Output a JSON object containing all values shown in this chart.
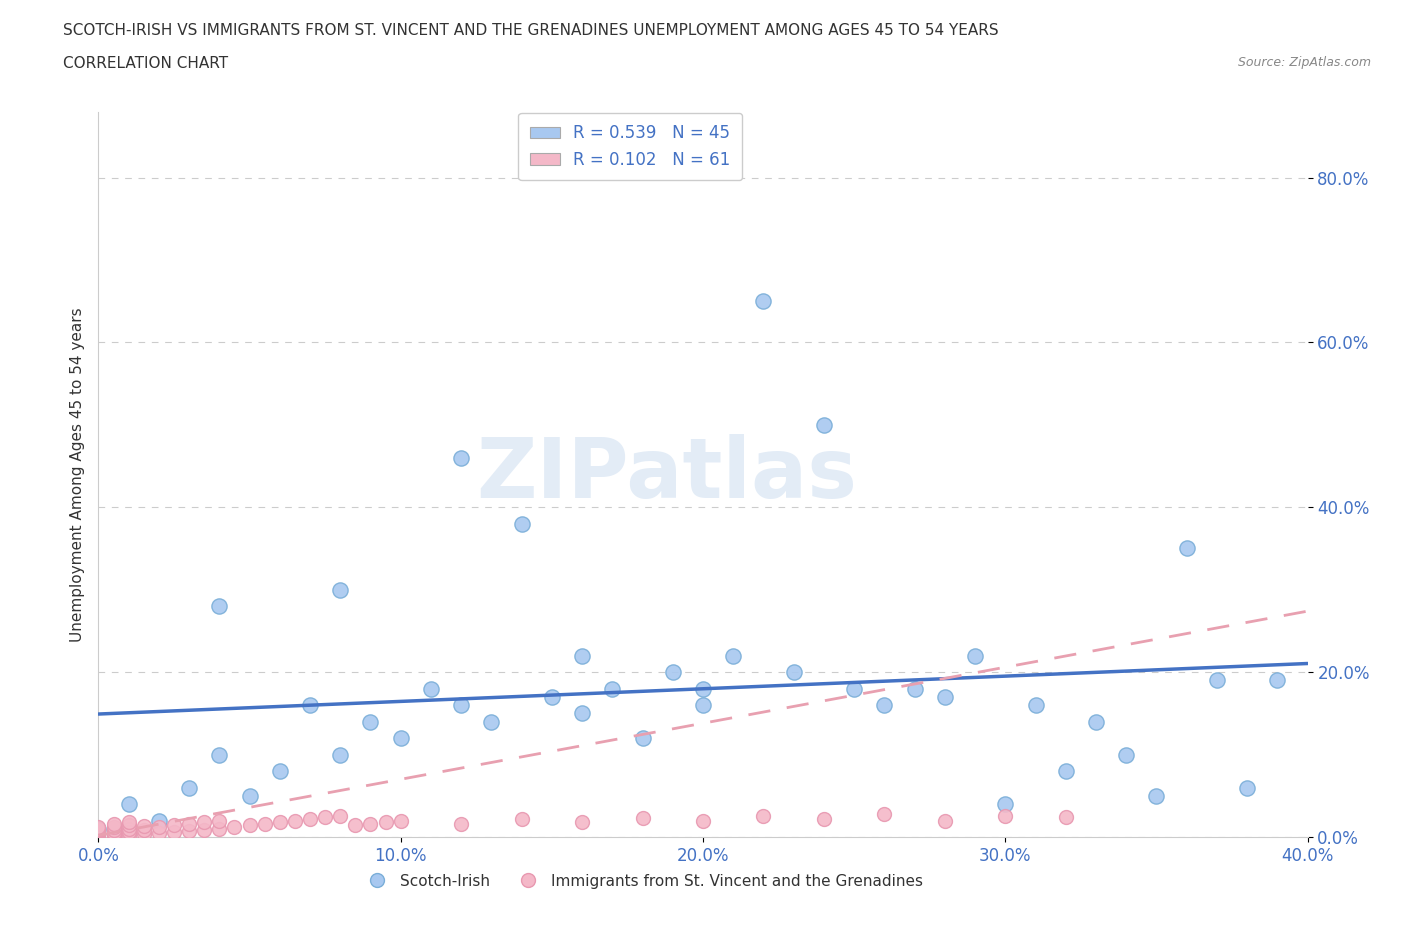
{
  "title_line1": "SCOTCH-IRISH VS IMMIGRANTS FROM ST. VINCENT AND THE GRENADINES UNEMPLOYMENT AMONG AGES 45 TO 54 YEARS",
  "title_line2": "CORRELATION CHART",
  "source_text": "Source: ZipAtlas.com",
  "ylabel": "Unemployment Among Ages 45 to 54 years",
  "legend_r1": "R = 0.539",
  "legend_n1": "N = 45",
  "legend_r2": "R = 0.102",
  "legend_n2": "N = 61",
  "color_blue": "#a8c8f0",
  "color_blue_edge": "#7aaed8",
  "color_pink": "#f4b8c8",
  "color_pink_edge": "#e898b0",
  "line_blue": "#4472c4",
  "line_pink": "#e8a0b0",
  "watermark": "ZIPatlas",
  "xlim": [
    0.0,
    0.4
  ],
  "ylim": [
    0.0,
    0.88
  ],
  "xticks": [
    0.0,
    0.1,
    0.2,
    0.3,
    0.4
  ],
  "yticks": [
    0.0,
    0.2,
    0.4,
    0.6,
    0.8
  ],
  "xticklabels": [
    "0.0%",
    "10.0%",
    "20.0%",
    "30.0%",
    "40.0%"
  ],
  "yticklabels": [
    "0.0%",
    "20.0%",
    "40.0%",
    "60.0%",
    "80.0%"
  ],
  "scotch_irish_x": [
    0.0,
    0.01,
    0.02,
    0.03,
    0.04,
    0.05,
    0.06,
    0.07,
    0.08,
    0.09,
    0.1,
    0.11,
    0.12,
    0.13,
    0.14,
    0.15,
    0.16,
    0.17,
    0.18,
    0.19,
    0.2,
    0.21,
    0.22,
    0.23,
    0.24,
    0.25,
    0.26,
    0.27,
    0.28,
    0.29,
    0.3,
    0.31,
    0.32,
    0.33,
    0.34,
    0.35,
    0.36,
    0.37,
    0.38,
    0.39,
    0.04,
    0.08,
    0.12,
    0.16,
    0.2
  ],
  "scotch_irish_y": [
    0.01,
    0.04,
    0.02,
    0.06,
    0.1,
    0.05,
    0.08,
    0.16,
    0.1,
    0.14,
    0.12,
    0.18,
    0.46,
    0.14,
    0.38,
    0.17,
    0.15,
    0.18,
    0.12,
    0.2,
    0.16,
    0.22,
    0.65,
    0.2,
    0.5,
    0.18,
    0.16,
    0.18,
    0.17,
    0.22,
    0.04,
    0.16,
    0.08,
    0.14,
    0.1,
    0.05,
    0.35,
    0.19,
    0.06,
    0.19,
    0.28,
    0.3,
    0.16,
    0.22,
    0.18
  ],
  "svg_x": [
    0.0,
    0.0,
    0.0,
    0.0,
    0.0,
    0.0,
    0.0,
    0.0,
    0.0,
    0.0,
    0.005,
    0.005,
    0.005,
    0.005,
    0.005,
    0.005,
    0.005,
    0.005,
    0.005,
    0.005,
    0.01,
    0.01,
    0.01,
    0.01,
    0.01,
    0.015,
    0.015,
    0.015,
    0.02,
    0.02,
    0.025,
    0.025,
    0.03,
    0.03,
    0.035,
    0.035,
    0.04,
    0.04,
    0.045,
    0.05,
    0.055,
    0.06,
    0.065,
    0.07,
    0.075,
    0.08,
    0.085,
    0.09,
    0.095,
    0.1,
    0.12,
    0.14,
    0.16,
    0.18,
    0.2,
    0.22,
    0.24,
    0.26,
    0.28,
    0.3,
    0.32
  ],
  "svg_y": [
    0.0,
    0.002,
    0.003,
    0.004,
    0.005,
    0.006,
    0.007,
    0.008,
    0.01,
    0.012,
    0.002,
    0.004,
    0.006,
    0.008,
    0.01,
    0.003,
    0.005,
    0.008,
    0.012,
    0.016,
    0.003,
    0.006,
    0.01,
    0.014,
    0.018,
    0.004,
    0.008,
    0.013,
    0.005,
    0.012,
    0.006,
    0.015,
    0.007,
    0.016,
    0.008,
    0.018,
    0.01,
    0.02,
    0.012,
    0.014,
    0.016,
    0.018,
    0.02,
    0.022,
    0.024,
    0.026,
    0.014,
    0.016,
    0.018,
    0.02,
    0.016,
    0.022,
    0.018,
    0.023,
    0.02,
    0.025,
    0.022,
    0.028,
    0.02,
    0.025,
    0.024
  ],
  "grid_color": "#cccccc",
  "background_color": "#ffffff",
  "title_color": "#333333",
  "source_color": "#888888",
  "tick_color": "#4472c4",
  "axis_color": "#cccccc"
}
